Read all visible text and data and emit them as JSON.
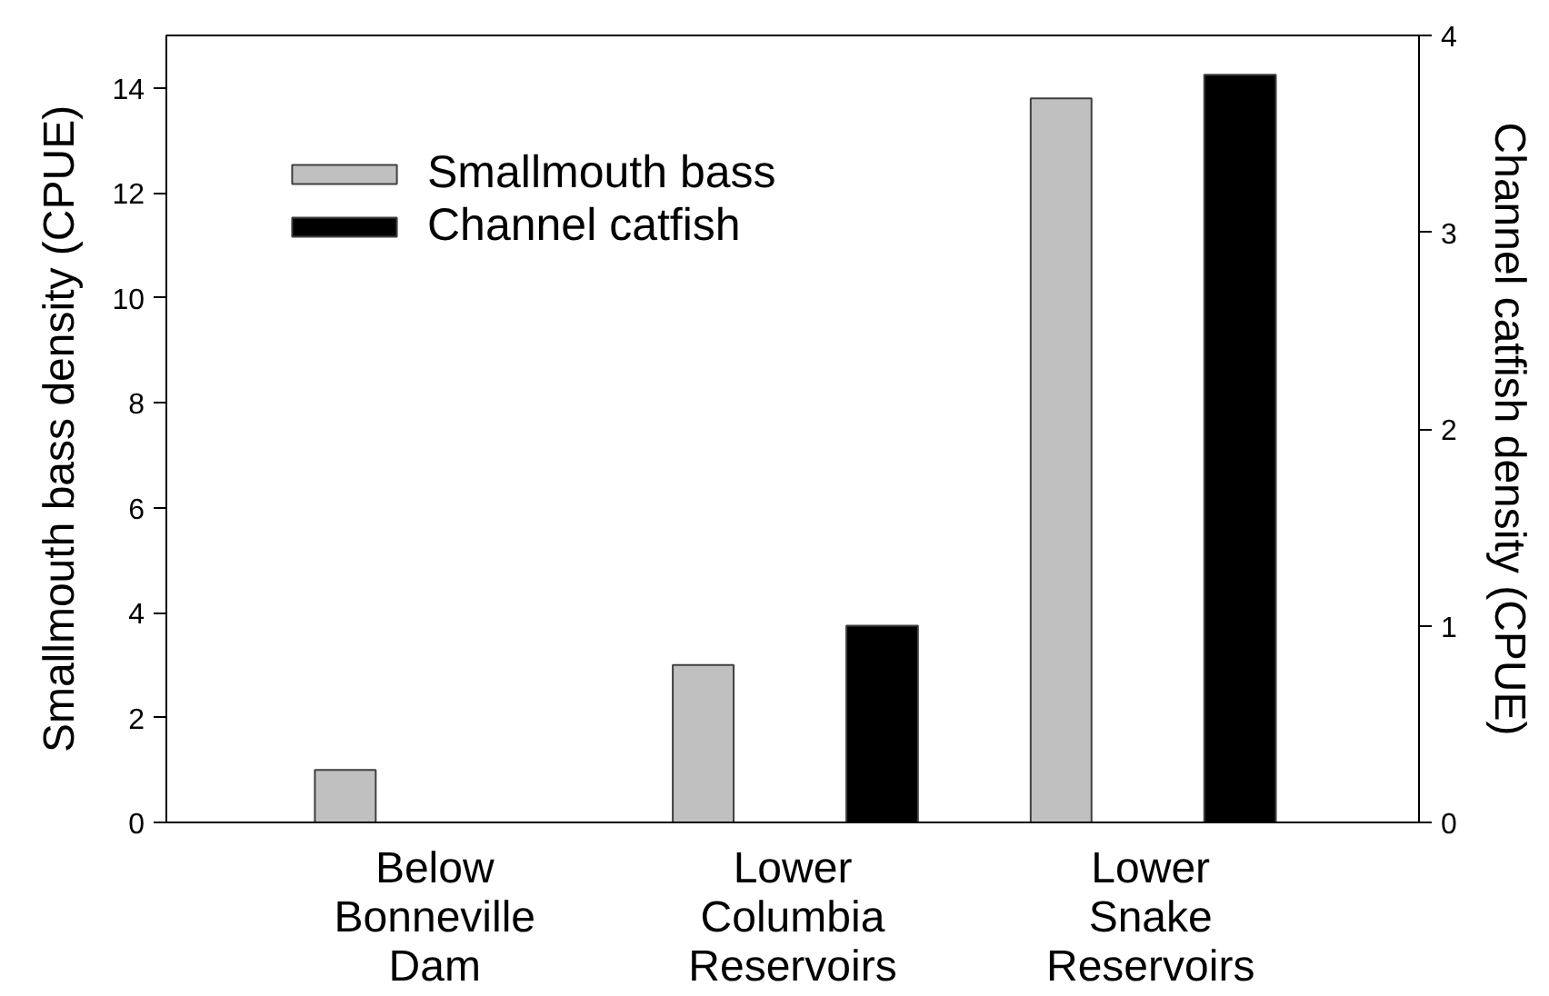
{
  "chart_data": {
    "type": "bar",
    "categories": [
      "Below Bonneville Dam",
      "Lower Columbia Reservoirs",
      "Lower Snake Reservoirs"
    ],
    "series": [
      {
        "name": "Smallmouth bass",
        "color": "#c0c0c0",
        "values": [
          1.0,
          3.0,
          13.8
        ]
      },
      {
        "name": "Channel catfish",
        "color": "#000000",
        "values": [
          null,
          1.0,
          3.8
        ],
        "axis": "y2"
      }
    ],
    "ylabel": "Smallmouth bass density (CPUE)",
    "y2label": "Channel catfish density (CPUE)",
    "ylim": [
      0,
      15
    ],
    "yticks": [
      0,
      2,
      4,
      6,
      8,
      10,
      12,
      14
    ],
    "y2lim": [
      0,
      4
    ],
    "y2ticks": [
      0,
      1,
      2,
      3,
      4
    ],
    "legend": "top left"
  }
}
